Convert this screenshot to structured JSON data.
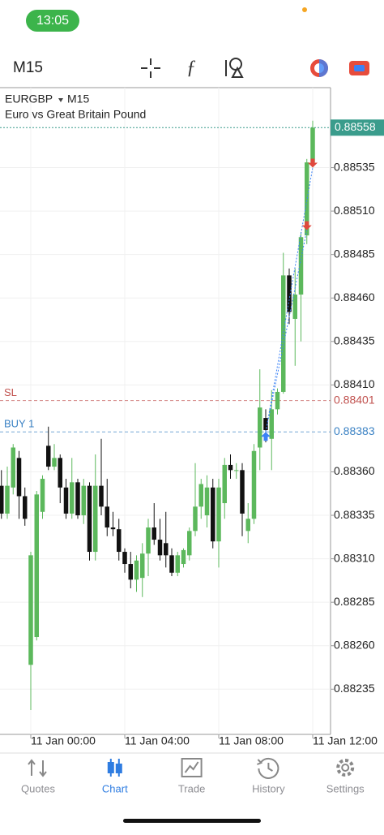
{
  "status_time": "13:05",
  "toolbar": {
    "timeframe": "M15"
  },
  "nav": [
    {
      "label": "Quotes",
      "active": false
    },
    {
      "label": "Chart",
      "active": true
    },
    {
      "label": "Trade",
      "active": false
    },
    {
      "label": "History",
      "active": false
    },
    {
      "label": "Settings",
      "active": false
    }
  ],
  "chart_data": {
    "type": "candlestick",
    "symbol": "EURGBP",
    "timeframe": "M15",
    "description": "Euro vs Great Britain Pound",
    "categories": [
      null,
      null,
      null,
      null,
      null,
      "11 Jan 00:00",
      null,
      null,
      null,
      null,
      null,
      null,
      null,
      null,
      null,
      null,
      null,
      null,
      null,
      null,
      null,
      "11 Jan 04:00",
      null,
      null,
      null,
      null,
      null,
      null,
      null,
      null,
      null,
      null,
      null,
      null,
      null,
      null,
      null,
      "11 Jan 08:00",
      null,
      null,
      null,
      null,
      null,
      null,
      null,
      null,
      null,
      null,
      null,
      null,
      null,
      null,
      null,
      "11 Jan 12:00"
    ],
    "open": [
      0.88352,
      0.88336,
      0.88351,
      0.88368,
      0.88346,
      0.88249,
      0.88265,
      0.88337,
      0.88375,
      0.88363,
      0.88368,
      0.88351,
      0.88336,
      0.88354,
      0.88335,
      0.88352,
      0.88314,
      0.88352,
      0.8834,
      0.88328,
      0.88327,
      0.88314,
      0.88307,
      0.88298,
      0.88299,
      0.88313,
      0.88328,
      0.88321,
      0.88319,
      0.88312,
      0.88302,
      0.88307,
      0.88312,
      0.88326,
      0.8834,
      0.88335,
      0.88351,
      0.8832,
      0.88342,
      0.88364,
      0.88361,
      0.88361,
      0.88326,
      0.88333,
      0.88374,
      0.88391,
      0.88379,
      0.88396,
      0.88406,
      0.88473,
      0.88448,
      0.88462,
      0.88496,
      0.88538
    ],
    "high": [
      0.88361,
      0.88363,
      0.88376,
      0.88372,
      0.88351,
      0.88314,
      0.88349,
      0.88358,
      0.88386,
      0.88376,
      0.8837,
      0.88356,
      0.88368,
      0.88356,
      0.88356,
      0.88354,
      0.8837,
      0.88379,
      0.88356,
      0.88337,
      0.88333,
      0.88316,
      0.88314,
      0.88312,
      0.88319,
      0.88333,
      0.88342,
      0.88333,
      0.88337,
      0.88316,
      0.88314,
      0.88316,
      0.88328,
      0.88365,
      0.88356,
      0.88358,
      0.88356,
      0.88356,
      0.88368,
      0.8837,
      0.88365,
      0.88365,
      0.88342,
      0.88376,
      0.88419,
      0.88396,
      0.88407,
      0.88408,
      0.88486,
      0.88477,
      0.88477,
      0.88498,
      0.8854,
      0.88562
    ],
    "low": [
      0.88333,
      0.88333,
      0.88347,
      0.88333,
      0.88329,
      0.88223,
      0.88263,
      0.88333,
      0.88361,
      0.88361,
      0.88342,
      0.88333,
      0.88333,
      0.88333,
      0.8833,
      0.88309,
      0.88309,
      0.88335,
      0.88323,
      0.88323,
      0.88309,
      0.88302,
      0.88293,
      0.88291,
      0.88288,
      0.883,
      0.88318,
      0.88309,
      0.88305,
      0.883,
      0.883,
      0.88305,
      0.88309,
      0.88323,
      0.88333,
      0.88328,
      0.88316,
      0.88305,
      0.88333,
      0.88356,
      0.88356,
      0.88323,
      0.88319,
      0.8833,
      0.88361,
      0.88377,
      0.88361,
      0.88393,
      0.88405,
      0.88445,
      0.88421,
      0.88435,
      0.88491,
      0.88535
    ],
    "close": [
      0.88336,
      0.88352,
      0.88374,
      0.88346,
      0.88333,
      0.88312,
      0.88347,
      0.88356,
      0.88363,
      0.88368,
      0.88351,
      0.88336,
      0.88354,
      0.88335,
      0.88352,
      0.88314,
      0.88352,
      0.8834,
      0.88328,
      0.88327,
      0.88314,
      0.88307,
      0.88298,
      0.88309,
      0.88313,
      0.88328,
      0.88321,
      0.88312,
      0.88312,
      0.88302,
      0.88312,
      0.88315,
      0.88326,
      0.8834,
      0.88353,
      0.88351,
      0.8832,
      0.88351,
      0.88364,
      0.88361,
      0.88361,
      0.88336,
      0.88333,
      0.88372,
      0.88397,
      0.88384,
      0.88396,
      0.88406,
      0.88473,
      0.88452,
      0.88462,
      0.88495,
      0.88538,
      0.88558
    ],
    "up_color": "#5cb85c",
    "down_color": "#111111",
    "ylim": [
      0.88209,
      0.88581
    ],
    "yticks": [
      0.88235,
      {
        "value": 0.8826,
        "label": "0.88260"
      },
      0.88285,
      {
        "value": 0.8831,
        "label": "0.88310"
      },
      0.88335,
      {
        "value": 0.8836,
        "label": "0.88360"
      },
      {
        "value": 0.8841,
        "label": "0.88410"
      },
      0.88435,
      {
        "value": 0.8846,
        "label": "0.88460"
      },
      0.88485,
      {
        "value": 0.8851,
        "label": "0.88510"
      },
      0.88535
    ],
    "grid": true,
    "current_price": 0.88558,
    "levels": [
      {
        "label": "SL",
        "price": 0.88401,
        "color": "#c0504d"
      },
      {
        "label": "BUY 1",
        "price": 0.88383,
        "color": "#3b82c4"
      }
    ],
    "orders": [
      {
        "side": "buy",
        "candle": 45,
        "price": 0.88383,
        "color": "#3b82f6"
      },
      {
        "side": "sell",
        "candle": 52,
        "price": 0.88499,
        "color": "#e0483e"
      },
      {
        "side": "sell",
        "candle": 53,
        "price": 0.88535,
        "color": "#e0483e"
      }
    ]
  }
}
